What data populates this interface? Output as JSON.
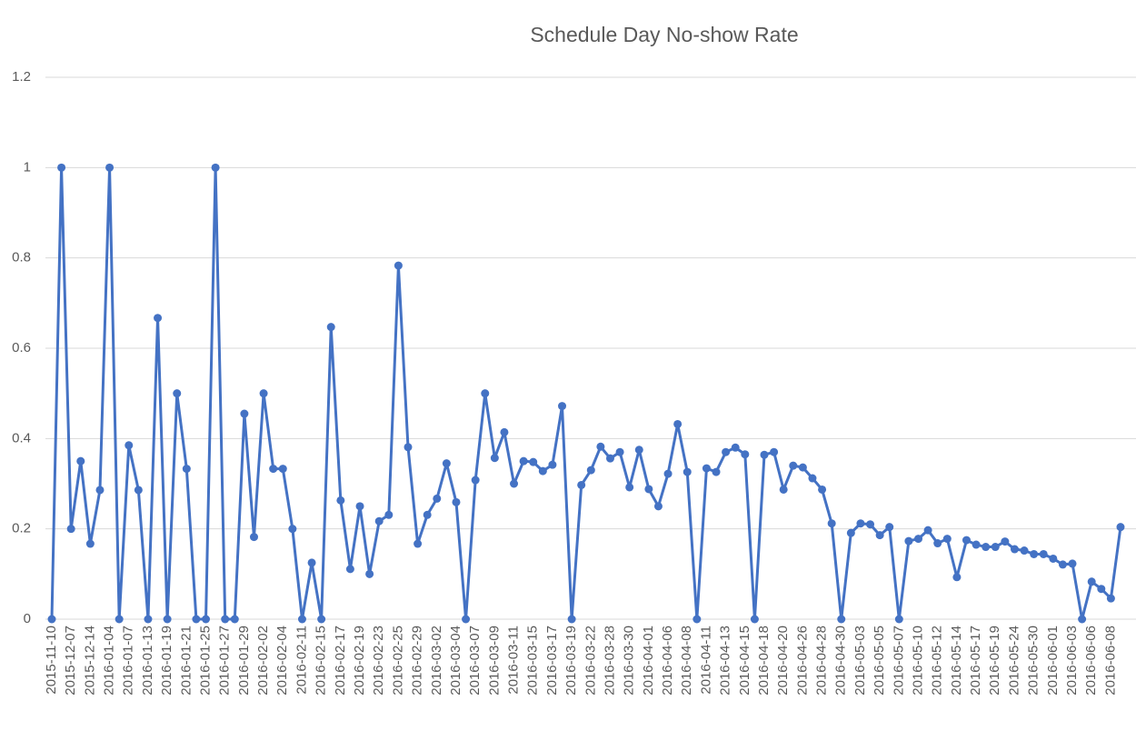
{
  "chart_data": {
    "type": "line",
    "title": "Schedule Day No-show Rate",
    "categories": [
      "2015-11-10",
      null,
      "2015-12-07",
      null,
      "2015-12-14",
      null,
      "2016-01-04",
      null,
      "2016-01-07",
      null,
      "2016-01-13",
      null,
      "2016-01-19",
      null,
      "2016-01-21",
      null,
      "2016-01-25",
      null,
      "2016-01-27",
      null,
      "2016-01-29",
      null,
      "2016-02-02",
      null,
      "2016-02-04",
      null,
      "2016-02-11",
      null,
      "2016-02-15",
      null,
      "2016-02-17",
      null,
      "2016-02-19",
      null,
      "2016-02-23",
      null,
      "2016-02-25",
      null,
      "2016-02-29",
      null,
      "2016-03-02",
      null,
      "2016-03-04",
      null,
      "2016-03-07",
      null,
      "2016-03-09",
      null,
      "2016-03-11",
      null,
      "2016-03-15",
      null,
      "2016-03-17",
      null,
      "2016-03-19",
      null,
      "2016-03-22",
      null,
      "2016-03-28",
      null,
      "2016-03-30",
      null,
      "2016-04-01",
      null,
      "2016-04-06",
      null,
      "2016-04-08",
      null,
      "2016-04-11",
      null,
      "2016-04-13",
      null,
      "2016-04-15",
      null,
      "2016-04-18",
      null,
      "2016-04-20",
      null,
      "2016-04-26",
      null,
      "2016-04-28",
      null,
      "2016-04-30",
      null,
      "2016-05-03",
      null,
      "2016-05-05",
      null,
      "2016-05-07",
      null,
      "2016-05-10",
      null,
      "2016-05-12",
      null,
      "2016-05-14",
      null,
      "2016-05-17",
      null,
      "2016-05-19",
      null,
      "2016-05-24",
      null,
      "2016-05-30",
      null,
      "2016-06-01",
      null,
      "2016-06-03",
      null,
      "2016-06-06",
      null,
      "2016-06-08",
      null
    ],
    "values": [
      0,
      1.0,
      0.2,
      0.35,
      0.167,
      0.286,
      1.0,
      0,
      0.385,
      0.286,
      0,
      0.667,
      0,
      0.5,
      0.333,
      0,
      0,
      1.0,
      0,
      0,
      0.455,
      0.182,
      0.5,
      0.333,
      0.333,
      0.2,
      0,
      0.125,
      0,
      0.647,
      0.263,
      0.111,
      0.25,
      0.1,
      0.217,
      0.231,
      0.783,
      0.381,
      0.167,
      0.231,
      0.267,
      0.345,
      0.259,
      0,
      0.308,
      0.5,
      0.357,
      0.414,
      0.3,
      0.35,
      0.348,
      0.328,
      0.342,
      0.472,
      0,
      0.297,
      0.33,
      0.382,
      0.356,
      0.37,
      0.292,
      0.375,
      0.288,
      0.25,
      0.322,
      0.432,
      0.326,
      0,
      0.334,
      0.326,
      0.37,
      0.38,
      0.365,
      0,
      0.364,
      0.37,
      0.287,
      0.34,
      0.336,
      0.312,
      0.287,
      0.212,
      0,
      0.191,
      0.212,
      0.21,
      0.186,
      0.204,
      0,
      0.173,
      0.178,
      0.197,
      0.168,
      0.178,
      0.093,
      0.175,
      0.165,
      0.16,
      0.16,
      0.172,
      0.155,
      0.152,
      0.144,
      0.144,
      0.134,
      0.121,
      0.123,
      0,
      0.083,
      0.067,
      0.046,
      0.204
    ],
    "color": "#4472c4",
    "ylim": [
      0,
      1.2
    ],
    "yticks": [
      0,
      0.2,
      0.4,
      0.6,
      0.8,
      1,
      1.2
    ],
    "grid": true
  }
}
